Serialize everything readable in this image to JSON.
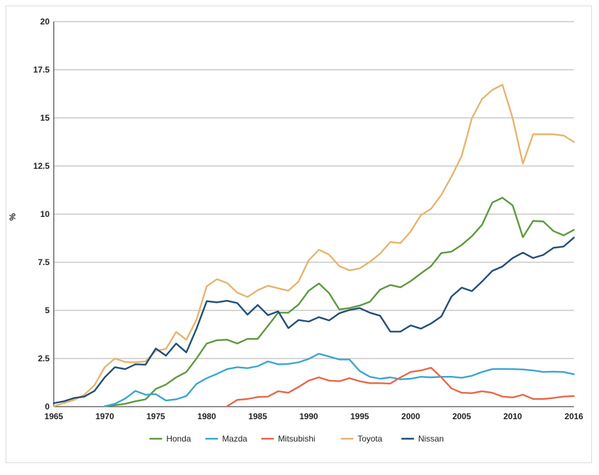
{
  "chart_data": {
    "type": "line",
    "ylabel": "%",
    "ylim": [
      0,
      20
    ],
    "xlim": [
      1965,
      2016
    ],
    "yticks": [
      "0",
      "2.5",
      "5",
      "7.5",
      "10",
      "12.5",
      "15",
      "17.5",
      "20"
    ],
    "ytick_values": [
      0,
      2.5,
      5,
      7.5,
      10,
      12.5,
      15,
      17.5,
      20
    ],
    "xticks": [
      "1965",
      "1970",
      "1975",
      "1980",
      "1985",
      "1990",
      "1995",
      "2000",
      "2005",
      "2010",
      "2016"
    ],
    "xtick_values": [
      1965,
      1970,
      1975,
      1980,
      1985,
      1990,
      1995,
      2000,
      2005,
      2010,
      2016
    ],
    "grid": "horizontal",
    "legend_position": "bottom",
    "series": [
      {
        "name": "Honda",
        "color": "#5a9a3c",
        "points": [
          [
            1970,
            0.02
          ],
          [
            1971,
            0.08
          ],
          [
            1972,
            0.15
          ],
          [
            1973,
            0.28
          ],
          [
            1974,
            0.38
          ],
          [
            1975,
            0.92
          ],
          [
            1976,
            1.15
          ],
          [
            1977,
            1.52
          ],
          [
            1978,
            1.8
          ],
          [
            1979,
            2.5
          ],
          [
            1980,
            3.28
          ],
          [
            1981,
            3.45
          ],
          [
            1982,
            3.48
          ],
          [
            1983,
            3.28
          ],
          [
            1984,
            3.52
          ],
          [
            1985,
            3.52
          ],
          [
            1986,
            4.2
          ],
          [
            1987,
            4.88
          ],
          [
            1988,
            4.88
          ],
          [
            1989,
            5.3
          ],
          [
            1990,
            6.02
          ],
          [
            1991,
            6.4
          ],
          [
            1992,
            5.9
          ],
          [
            1993,
            5.05
          ],
          [
            1994,
            5.12
          ],
          [
            1995,
            5.25
          ],
          [
            1996,
            5.45
          ],
          [
            1997,
            6.08
          ],
          [
            1998,
            6.32
          ],
          [
            1999,
            6.2
          ],
          [
            2000,
            6.52
          ],
          [
            2001,
            6.92
          ],
          [
            2002,
            7.3
          ],
          [
            2003,
            7.98
          ],
          [
            2004,
            8.05
          ],
          [
            2005,
            8.4
          ],
          [
            2006,
            8.85
          ],
          [
            2007,
            9.45
          ],
          [
            2008,
            10.6
          ],
          [
            2009,
            10.85
          ],
          [
            2010,
            10.45
          ],
          [
            2011,
            8.8
          ],
          [
            2012,
            9.65
          ],
          [
            2013,
            9.62
          ],
          [
            2014,
            9.12
          ],
          [
            2015,
            8.9
          ],
          [
            2016,
            9.18
          ]
        ]
      },
      {
        "name": "Mazda",
        "color": "#3aa6d0",
        "points": [
          [
            1970,
            0.02
          ],
          [
            1971,
            0.15
          ],
          [
            1972,
            0.42
          ],
          [
            1973,
            0.82
          ],
          [
            1974,
            0.62
          ],
          [
            1975,
            0.65
          ],
          [
            1976,
            0.32
          ],
          [
            1977,
            0.38
          ],
          [
            1978,
            0.55
          ],
          [
            1979,
            1.18
          ],
          [
            1980,
            1.48
          ],
          [
            1981,
            1.7
          ],
          [
            1982,
            1.95
          ],
          [
            1983,
            2.05
          ],
          [
            1984,
            2.0
          ],
          [
            1985,
            2.1
          ],
          [
            1986,
            2.35
          ],
          [
            1987,
            2.2
          ],
          [
            1988,
            2.22
          ],
          [
            1989,
            2.3
          ],
          [
            1990,
            2.48
          ],
          [
            1991,
            2.75
          ],
          [
            1992,
            2.6
          ],
          [
            1993,
            2.45
          ],
          [
            1994,
            2.45
          ],
          [
            1995,
            1.85
          ],
          [
            1996,
            1.55
          ],
          [
            1997,
            1.45
          ],
          [
            1998,
            1.52
          ],
          [
            1999,
            1.42
          ],
          [
            2000,
            1.45
          ],
          [
            2001,
            1.55
          ],
          [
            2002,
            1.52
          ],
          [
            2003,
            1.55
          ],
          [
            2004,
            1.55
          ],
          [
            2005,
            1.5
          ],
          [
            2006,
            1.6
          ],
          [
            2007,
            1.8
          ],
          [
            2008,
            1.95
          ],
          [
            2009,
            1.96
          ],
          [
            2010,
            1.95
          ],
          [
            2011,
            1.93
          ],
          [
            2012,
            1.88
          ],
          [
            2013,
            1.8
          ],
          [
            2014,
            1.82
          ],
          [
            2015,
            1.8
          ],
          [
            2016,
            1.68
          ]
        ]
      },
      {
        "name": "Mitsubishi",
        "color": "#e8664a",
        "points": [
          [
            1982,
            0.02
          ],
          [
            1983,
            0.35
          ],
          [
            1984,
            0.4
          ],
          [
            1985,
            0.5
          ],
          [
            1986,
            0.52
          ],
          [
            1987,
            0.8
          ],
          [
            1988,
            0.72
          ],
          [
            1989,
            1.02
          ],
          [
            1990,
            1.35
          ],
          [
            1991,
            1.52
          ],
          [
            1992,
            1.35
          ],
          [
            1993,
            1.32
          ],
          [
            1994,
            1.48
          ],
          [
            1995,
            1.32
          ],
          [
            1996,
            1.22
          ],
          [
            1997,
            1.22
          ],
          [
            1998,
            1.2
          ],
          [
            1999,
            1.52
          ],
          [
            2000,
            1.8
          ],
          [
            2001,
            1.88
          ],
          [
            2002,
            2.02
          ],
          [
            2003,
            1.52
          ],
          [
            2004,
            0.95
          ],
          [
            2005,
            0.72
          ],
          [
            2006,
            0.7
          ],
          [
            2007,
            0.8
          ],
          [
            2008,
            0.72
          ],
          [
            2009,
            0.52
          ],
          [
            2010,
            0.48
          ],
          [
            2011,
            0.62
          ],
          [
            2012,
            0.4
          ],
          [
            2013,
            0.4
          ],
          [
            2014,
            0.45
          ],
          [
            2015,
            0.52
          ],
          [
            2016,
            0.55
          ]
        ]
      },
      {
        "name": "Toyota",
        "color": "#e6b46e",
        "points": [
          [
            1965,
            0.02
          ],
          [
            1966,
            0.18
          ],
          [
            1967,
            0.35
          ],
          [
            1968,
            0.62
          ],
          [
            1969,
            1.12
          ],
          [
            1970,
            2.05
          ],
          [
            1971,
            2.5
          ],
          [
            1972,
            2.32
          ],
          [
            1973,
            2.3
          ],
          [
            1974,
            2.35
          ],
          [
            1975,
            2.9
          ],
          [
            1976,
            3.0
          ],
          [
            1977,
            3.88
          ],
          [
            1978,
            3.48
          ],
          [
            1979,
            4.52
          ],
          [
            1980,
            6.25
          ],
          [
            1981,
            6.62
          ],
          [
            1982,
            6.42
          ],
          [
            1983,
            5.92
          ],
          [
            1984,
            5.7
          ],
          [
            1985,
            6.05
          ],
          [
            1986,
            6.28
          ],
          [
            1987,
            6.15
          ],
          [
            1988,
            6.02
          ],
          [
            1989,
            6.5
          ],
          [
            1990,
            7.6
          ],
          [
            1991,
            8.15
          ],
          [
            1992,
            7.9
          ],
          [
            1993,
            7.3
          ],
          [
            1994,
            7.08
          ],
          [
            1995,
            7.18
          ],
          [
            1996,
            7.52
          ],
          [
            1997,
            7.95
          ],
          [
            1998,
            8.55
          ],
          [
            1999,
            8.5
          ],
          [
            2000,
            9.1
          ],
          [
            2001,
            9.95
          ],
          [
            2002,
            10.28
          ],
          [
            2003,
            11.0
          ],
          [
            2004,
            11.95
          ],
          [
            2005,
            13.02
          ],
          [
            2006,
            14.98
          ],
          [
            2007,
            15.98
          ],
          [
            2008,
            16.45
          ],
          [
            2009,
            16.72
          ],
          [
            2010,
            14.98
          ],
          [
            2011,
            12.62
          ],
          [
            2012,
            14.15
          ],
          [
            2013,
            14.15
          ],
          [
            2014,
            14.15
          ],
          [
            2015,
            14.08
          ],
          [
            2016,
            13.75
          ]
        ]
      },
      {
        "name": "Nissan",
        "color": "#1f4e79",
        "points": [
          [
            1965,
            0.18
          ],
          [
            1966,
            0.28
          ],
          [
            1967,
            0.45
          ],
          [
            1968,
            0.52
          ],
          [
            1969,
            0.82
          ],
          [
            1970,
            1.52
          ],
          [
            1971,
            2.05
          ],
          [
            1972,
            1.95
          ],
          [
            1973,
            2.2
          ],
          [
            1974,
            2.18
          ],
          [
            1975,
            3.02
          ],
          [
            1976,
            2.65
          ],
          [
            1977,
            3.28
          ],
          [
            1978,
            2.82
          ],
          [
            1979,
            4.05
          ],
          [
            1980,
            5.48
          ],
          [
            1981,
            5.42
          ],
          [
            1982,
            5.5
          ],
          [
            1983,
            5.38
          ],
          [
            1984,
            4.78
          ],
          [
            1985,
            5.28
          ],
          [
            1986,
            4.75
          ],
          [
            1987,
            4.95
          ],
          [
            1988,
            4.08
          ],
          [
            1989,
            4.5
          ],
          [
            1990,
            4.42
          ],
          [
            1991,
            4.65
          ],
          [
            1992,
            4.48
          ],
          [
            1993,
            4.85
          ],
          [
            1994,
            5.02
          ],
          [
            1995,
            5.12
          ],
          [
            1996,
            4.88
          ],
          [
            1997,
            4.72
          ],
          [
            1998,
            3.9
          ],
          [
            1999,
            3.9
          ],
          [
            2000,
            4.22
          ],
          [
            2001,
            4.05
          ],
          [
            2002,
            4.32
          ],
          [
            2003,
            4.68
          ],
          [
            2004,
            5.72
          ],
          [
            2005,
            6.18
          ],
          [
            2006,
            6.0
          ],
          [
            2007,
            6.5
          ],
          [
            2008,
            7.05
          ],
          [
            2009,
            7.28
          ],
          [
            2010,
            7.72
          ],
          [
            2011,
            8.0
          ],
          [
            2012,
            7.72
          ],
          [
            2013,
            7.88
          ],
          [
            2014,
            8.25
          ],
          [
            2015,
            8.32
          ],
          [
            2016,
            8.78
          ]
        ]
      }
    ]
  }
}
